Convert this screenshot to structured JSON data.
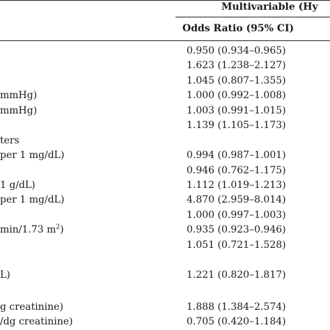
{
  "table": {
    "header_multivariable": "Multivariable (Hy",
    "header_or": "Odds Ratio (95% CI)",
    "labels": [
      {
        "text": "mmHg)"
      },
      {
        "text": "mmHg)"
      },
      {
        "text": "ters"
      },
      {
        "text": "per 1 mg/dL)"
      },
      {
        "text": "1 g/dL)"
      },
      {
        "text": "per 1 mg/dL)"
      },
      {
        "text": "min/1.73 m",
        "sup": "2",
        "tail": ")"
      },
      {
        "text": "L)"
      },
      {
        "text": "g creatinine)"
      },
      {
        "text": "/dg creatinine)"
      }
    ],
    "values": [
      "0.950 (0.934–0.965)",
      "1.623 (1.238–2.127)",
      "1.045 (0.807–1.355)",
      "1.000 (0.992–1.008)",
      "1.003 (0.991–1.015)",
      "1.139 (1.105–1.173)",
      "0.994 (0.987–1.001)",
      "0.946 (0.762–1.175)",
      "1.112 (1.019–1.213)",
      "4.870 (2.959–8.014)",
      "1.000 (0.997–1.003)",
      "0.935 (0.923–0.946)",
      "1.051 (0.721–1.528)",
      "1.221 (0.820–1.817)",
      "1.888 (1.384–2.574)",
      "0.705 (0.420–1.184)"
    ]
  }
}
